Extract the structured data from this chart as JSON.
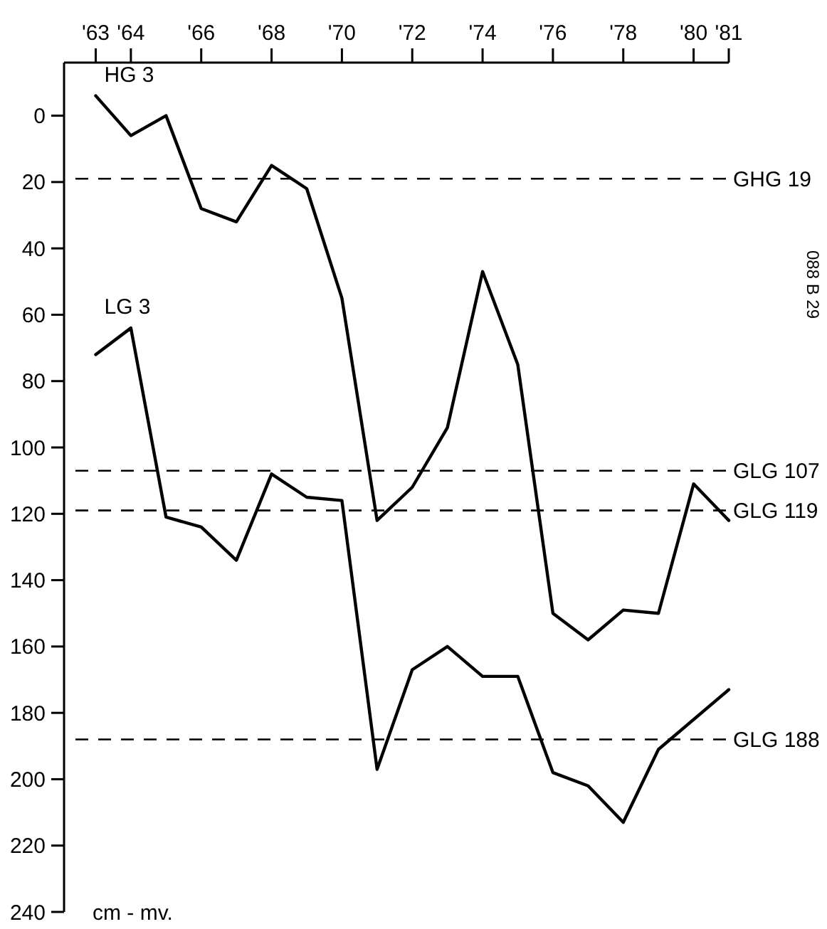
{
  "chart_data": {
    "type": "line",
    "x": [
      1963,
      1964,
      1965,
      1966,
      1967,
      1968,
      1969,
      1970,
      1971,
      1972,
      1973,
      1974,
      1975,
      1976,
      1977,
      1978,
      1979,
      1980,
      1981
    ],
    "series": [
      {
        "name": "HG 3",
        "color": "#000000",
        "values": [
          -6,
          6,
          0,
          28,
          32,
          15,
          22,
          55,
          122,
          112,
          94,
          47,
          75,
          150,
          158,
          149,
          150,
          111,
          122
        ]
      },
      {
        "name": "LG 3",
        "color": "#000000",
        "values": [
          72,
          64,
          121,
          124,
          134,
          108,
          115,
          116,
          197,
          167,
          160,
          169,
          169,
          198,
          202,
          213,
          191,
          182,
          173
        ]
      }
    ],
    "xlim": [
      1962.1,
      1981
    ],
    "xticks": [
      {
        "value": 1963,
        "label": "'63"
      },
      {
        "value": 1964,
        "label": "'64"
      },
      {
        "value": 1966,
        "label": "'66"
      },
      {
        "value": 1968,
        "label": "'68"
      },
      {
        "value": 1970,
        "label": "'70"
      },
      {
        "value": 1972,
        "label": "'72"
      },
      {
        "value": 1974,
        "label": "'74"
      },
      {
        "value": 1976,
        "label": "'76"
      },
      {
        "value": 1978,
        "label": "'78"
      },
      {
        "value": 1980,
        "label": "'80"
      },
      {
        "value": 1981,
        "label": "'81"
      }
    ],
    "ylim": [
      240,
      -16
    ],
    "yticks": [
      0,
      20,
      40,
      60,
      80,
      100,
      120,
      140,
      160,
      180,
      200,
      220,
      240
    ],
    "ref_lines": [
      {
        "axis": "y",
        "value": 19,
        "label": "GHG 19",
        "color": "#000000",
        "line_style": "dashed"
      },
      {
        "axis": "y",
        "value": 107,
        "label": "GLG 107",
        "color": "#000000",
        "line_style": "dashed"
      },
      {
        "axis": "y",
        "value": 119,
        "label": "GLG 119",
        "color": "#000000",
        "line_style": "dashed"
      },
      {
        "axis": "y",
        "value": 188,
        "label": "GLG 188",
        "color": "#000000",
        "line_style": "dashed"
      }
    ],
    "annotations": [
      "cm - mv.",
      "088 B 29"
    ],
    "grid": false,
    "legend": false,
    "marker": "none",
    "line_style": "solid"
  }
}
